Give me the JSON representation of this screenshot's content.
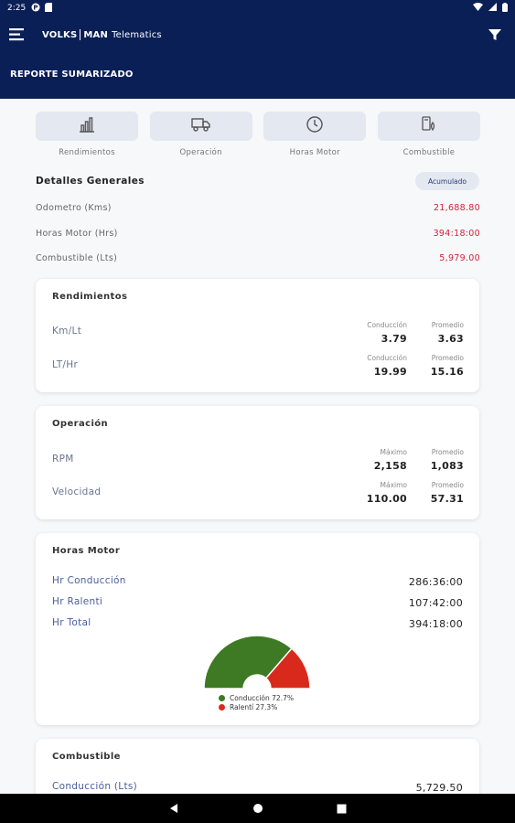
{
  "status": {
    "time": "2:25"
  },
  "appbar": {
    "brand_left": "VOLKS",
    "brand_right": "MAN",
    "brand_sub": "Telematics",
    "report_title": "REPORTE SUMARIZADO"
  },
  "tabs": [
    {
      "label": "Rendimientos",
      "icon": "bar-chart-icon"
    },
    {
      "label": "Operación",
      "icon": "truck-icon"
    },
    {
      "label": "Horas Motor",
      "icon": "clock-icon"
    },
    {
      "label": "Combustible",
      "icon": "fuel-icon"
    }
  ],
  "general": {
    "title": "Detalles Generales",
    "badge": "Acumulado",
    "rows": [
      {
        "label": "Odometro (Kms)",
        "value": "21,688.80"
      },
      {
        "label": "Horas Motor (Hrs)",
        "value": "394:18:00"
      },
      {
        "label": "Combustible (Lts)",
        "value": "5,979.00"
      }
    ]
  },
  "rendimientos": {
    "title": "Rendimientos",
    "rows": [
      {
        "label": "Km/Lt",
        "col1_head": "Conducción",
        "col1_val": "3.79",
        "col2_head": "Promedio",
        "col2_val": "3.63"
      },
      {
        "label": "LT/Hr",
        "col1_head": "Conducción",
        "col1_val": "19.99",
        "col2_head": "Promedio",
        "col2_val": "15.16"
      }
    ]
  },
  "operacion": {
    "title": "Operación",
    "rows": [
      {
        "label": "RPM",
        "col1_head": "Máximo",
        "col1_val": "2,158",
        "col2_head": "Promedio",
        "col2_val": "1,083"
      },
      {
        "label": "Velocidad",
        "col1_head": "Máximo",
        "col1_val": "110.00",
        "col2_head": "Promedio",
        "col2_val": "57.31"
      }
    ]
  },
  "horas_motor": {
    "title": "Horas Motor",
    "rows": [
      {
        "label": "Hr Conducción",
        "value": "286:36:00"
      },
      {
        "label": "Hr Ralenti",
        "value": "107:42:00"
      },
      {
        "label": "Hr Total",
        "value": "394:18:00"
      }
    ],
    "legend": [
      {
        "label": "Conducción 72.7%",
        "color": "#3d7a23"
      },
      {
        "label": "Ralentí 27.3%",
        "color": "#d9291c"
      }
    ]
  },
  "chart_data": {
    "type": "pie",
    "categories": [
      "Conducción",
      "Ralentí"
    ],
    "values": [
      72.7,
      27.3
    ],
    "colors": [
      "#3d7a23",
      "#d9291c"
    ]
  },
  "combustible": {
    "title": "Combustible",
    "rows": [
      {
        "label": "Conducción (Lts)",
        "value": "5,729.50"
      }
    ]
  }
}
